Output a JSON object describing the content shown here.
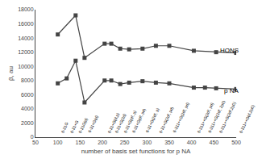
{
  "chart_data": {
    "type": "line",
    "xlabel": "number of basis set functions for p NA",
    "ylabel": "β, au",
    "color": "#444444",
    "marker": "square",
    "grid": false,
    "series": [
      {
        "x": [
          100,
          140,
          160,
          205,
          220,
          240,
          260,
          290,
          320,
          350,
          405,
          455,
          500
        ],
        "values": [
          14500,
          17200,
          11200,
          13200,
          13200,
          12500,
          12400,
          12500,
          12900,
          12900,
          12200,
          12000,
          11900
        ]
      },
      {
        "x": [
          100,
          120,
          140,
          160,
          205,
          220,
          240,
          260,
          290,
          320,
          350,
          405,
          430,
          455,
          500
        ],
        "values": [
          7600,
          8300,
          10800,
          4900,
          8000,
          8000,
          7500,
          7700,
          7900,
          7700,
          7600,
          7000,
          7000,
          6900,
          6800
        ]
      }
    ],
    "annotations": [
      {
        "text": "HONS",
        "x": 460,
        "y": 12200
      },
      {
        "text": "p NA",
        "x": 470,
        "y": 6600
      }
    ],
    "basis_labels": [
      {
        "x": 100,
        "y": 200,
        "text": "6-31G"
      },
      {
        "x": 120,
        "y": 200,
        "text": "6-31+G"
      },
      {
        "x": 140,
        "y": 200,
        "text": "6-31G(d)"
      },
      {
        "x": 160,
        "y": 200,
        "text": "6-31+G(d)"
      },
      {
        "x": 205,
        "y": 200,
        "text": "6-31+G(d,p)"
      },
      {
        "x": 220,
        "y": 200,
        "text": "6-31+G(2d)"
      },
      {
        "x": 240,
        "y": 200,
        "text": "6-31+G(df, p)"
      },
      {
        "x": 260,
        "y": 200,
        "text": "6-31+G(df, pd)"
      },
      {
        "x": 290,
        "y": 200,
        "text": "6-31+G(2df, p)"
      },
      {
        "x": 320,
        "y": 200,
        "text": "6-31+G(2df, pd)"
      },
      {
        "x": 350,
        "y": 200,
        "text": "6-311++G(2df, pd)"
      },
      {
        "x": 405,
        "y": 200,
        "text": "6-311++G(2df, pd)"
      },
      {
        "x": 430,
        "y": 200,
        "text": "6-311++G(2df, 2p0)"
      },
      {
        "x": 455,
        "y": 200,
        "text": "6-311++G(2df,2p0)"
      },
      {
        "x": 500,
        "y": 200,
        "text": "6-311++G(d,3p0)"
      }
    ],
    "xlim": [
      50,
      500
    ],
    "ylim": [
      0,
      18000
    ],
    "xticks": [
      50,
      100,
      150,
      200,
      250,
      300,
      350,
      400,
      450,
      500
    ],
    "yticks": [
      0,
      2000,
      4000,
      6000,
      8000,
      10000,
      12000,
      14000,
      16000,
      18000
    ]
  }
}
